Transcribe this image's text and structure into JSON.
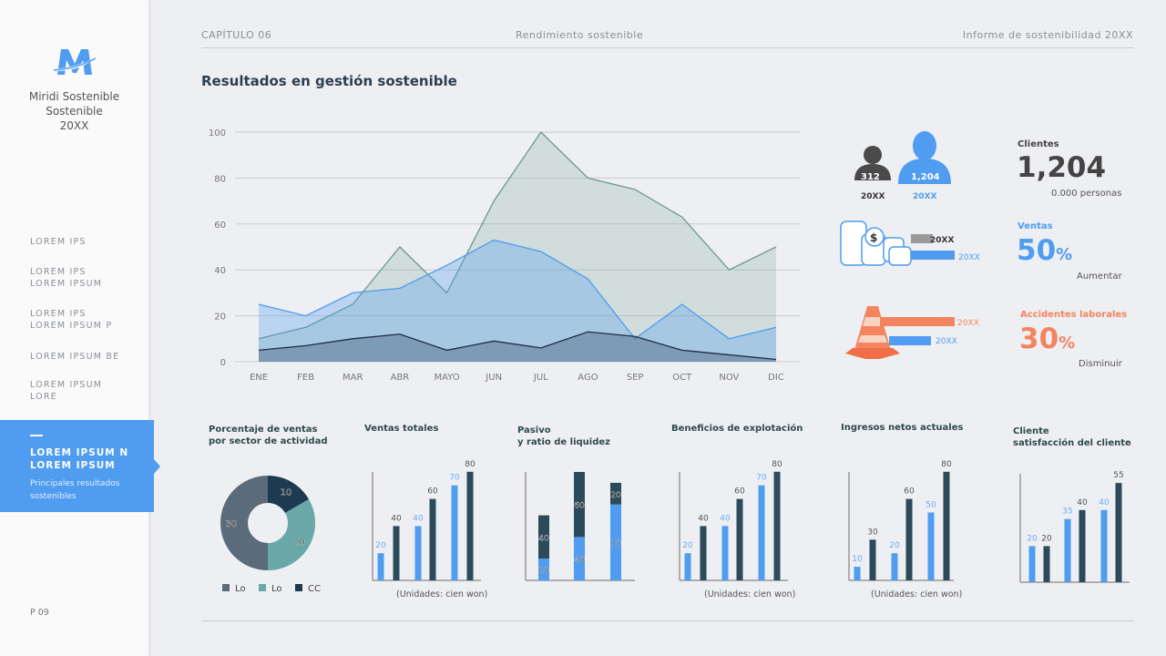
{
  "sidebar": {
    "brand": "Miridi Sostenible\nSostenible\n20XX",
    "items": [
      {
        "label": "LOREM IPS"
      },
      {
        "label": "LOREM IPS\nLOREM IPSUM"
      },
      {
        "label": "LOREM IPS\nLOREM IPSUM P"
      },
      {
        "label": "LOREM IPSUM BE"
      },
      {
        "label": "LOREM IPSUM\nLORE"
      }
    ],
    "active": {
      "label": "LOREM IPSUM N\nLOREM IPSUM",
      "subtitle": "Principales resultados sostenibles"
    },
    "page": "P 09"
  },
  "header": {
    "chapter": "CAPÍTULO 06",
    "section": "Rendimiento sostenible",
    "report": "Informe de sostenibilidad 20XX"
  },
  "title": "Resultados en gestión sostenible",
  "colors": {
    "blue": "#4f9cf0",
    "dark": "#2b4a5a",
    "teal": "#6aa8a8",
    "slate": "#5a6b7a",
    "navy": "#1e3a50",
    "orange": "#f4845f"
  },
  "stats": {
    "people": {
      "prev_value": "312",
      "prev_label": "20XX",
      "curr_value": "1,204",
      "curr_label": "20XX"
    },
    "clientes": {
      "label": "Clientes",
      "value": "1,204",
      "note": "0.000 personas"
    },
    "coins": {
      "prev_label": "20XX",
      "curr_label": "20XX"
    },
    "ventas": {
      "label": "Ventas",
      "value": "50",
      "unit": "%",
      "note": "Aumentar"
    },
    "cone": {
      "prev_label": "20XX",
      "curr_label": "20XX"
    },
    "accidentes": {
      "label": "Accidentes laborales",
      "value": "30",
      "unit": "%",
      "note": "Disminuir"
    }
  },
  "chart_data": [
    {
      "type": "area",
      "categories": [
        "ENE",
        "FEB",
        "MAR",
        "ABR",
        "MAYO",
        "JUN",
        "JUL",
        "AGO",
        "SEP",
        "OCT",
        "NOV",
        "DIC"
      ],
      "ylim": [
        0,
        100
      ],
      "yticks": [
        0,
        20,
        40,
        60,
        80,
        100
      ],
      "grid": true,
      "series": [
        {
          "values": [
            10,
            15,
            25,
            50,
            30,
            70,
            100,
            80,
            75,
            63,
            40,
            50
          ],
          "color": "#6a9a8a"
        },
        {
          "values": [
            25,
            20,
            30,
            32,
            42,
            53,
            48,
            36,
            10,
            25,
            10,
            15
          ],
          "color": "#4f9cf0"
        },
        {
          "values": [
            5,
            7,
            10,
            12,
            5,
            9,
            6,
            13,
            11,
            5,
            3,
            1
          ],
          "color": "#1e2e45"
        }
      ]
    },
    {
      "type": "pie",
      "title": "Porcentaje de ventas\npor sector de actividad",
      "slices": [
        {
          "name": "CC",
          "value": 10,
          "color": "#1e3a50"
        },
        {
          "name": "Lo",
          "value": 20,
          "color": "#6aa8a8"
        },
        {
          "name": "Lo",
          "value": 30,
          "color": "#5a6b7a"
        }
      ],
      "legend": [
        "Lo",
        "Lo",
        "CC"
      ]
    },
    {
      "type": "bar",
      "title": "Ventas totales",
      "units": "(Unidades: cien won)",
      "values": [
        20,
        40,
        40,
        60,
        70,
        80
      ],
      "kinds": [
        "blue",
        "dark",
        "blue",
        "dark",
        "blue",
        "dark"
      ]
    },
    {
      "type": "bar",
      "title": "Pasivo\ny ratio de liquidez",
      "stacked": true,
      "stacks": [
        [
          20,
          40
        ],
        [
          40,
          60
        ],
        [
          70,
          20
        ]
      ]
    },
    {
      "type": "bar",
      "title": "Beneficios de explotación",
      "units": "(Unidades: cien won)",
      "values": [
        20,
        40,
        40,
        60,
        70,
        80
      ],
      "kinds": [
        "blue",
        "dark",
        "blue",
        "dark",
        "blue",
        "dark"
      ]
    },
    {
      "type": "bar",
      "title": "Ingresos netos actuales",
      "units": "(Unidades: cien won)",
      "values": [
        10,
        30,
        20,
        60,
        50,
        80
      ],
      "kinds": [
        "blue",
        "dark",
        "blue",
        "dark",
        "blue",
        "dark"
      ]
    },
    {
      "type": "bar",
      "title": "Cliente\nsatisfacción del cliente",
      "values": [
        20,
        20,
        35,
        40,
        40,
        55
      ],
      "kinds": [
        "blue",
        "dark",
        "blue",
        "dark",
        "blue",
        "dark"
      ]
    }
  ]
}
